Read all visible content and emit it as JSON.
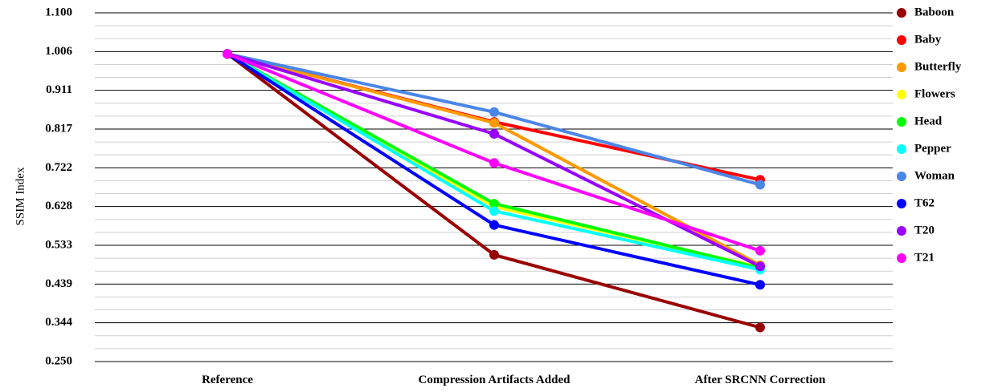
{
  "chart_data": {
    "type": "line",
    "title": "",
    "xlabel": "",
    "ylabel": "SSIM Index",
    "ylim": [
      0.25,
      1.1
    ],
    "y_ticks": [
      "1.100",
      "1.006",
      "0.911",
      "0.817",
      "0.722",
      "0.628",
      "0.533",
      "0.439",
      "0.344",
      "0.250"
    ],
    "categories": [
      "Reference",
      "Compression Artifacts Added",
      "After SRCNN Correction"
    ],
    "grid": true,
    "legend_position": "right",
    "series": [
      {
        "name": "Baboon",
        "color": "#990000",
        "values": [
          1.0,
          0.51,
          0.333
        ]
      },
      {
        "name": "Baby",
        "color": "#ff0000",
        "values": [
          1.0,
          0.834,
          0.693
        ]
      },
      {
        "name": "Butterfly",
        "color": "#ff9900",
        "values": [
          1.0,
          0.832,
          0.485
        ]
      },
      {
        "name": "Flowers",
        "color": "#ffff00",
        "values": [
          1.0,
          0.628,
          0.48
        ]
      },
      {
        "name": "Head",
        "color": "#00ff00",
        "values": [
          1.0,
          0.635,
          0.478
        ]
      },
      {
        "name": "Pepper",
        "color": "#00ffff",
        "values": [
          1.0,
          0.617,
          0.474
        ]
      },
      {
        "name": "Woman",
        "color": "#4a86e8",
        "values": [
          1.0,
          0.858,
          0.681
        ]
      },
      {
        "name": "T62",
        "color": "#0000ff",
        "values": [
          1.0,
          0.583,
          0.437
        ]
      },
      {
        "name": "T20",
        "color": "#9900ff",
        "values": [
          1.0,
          0.805,
          0.482
        ]
      },
      {
        "name": "T21",
        "color": "#ff00ff",
        "values": [
          1.0,
          0.734,
          0.52
        ]
      }
    ]
  }
}
